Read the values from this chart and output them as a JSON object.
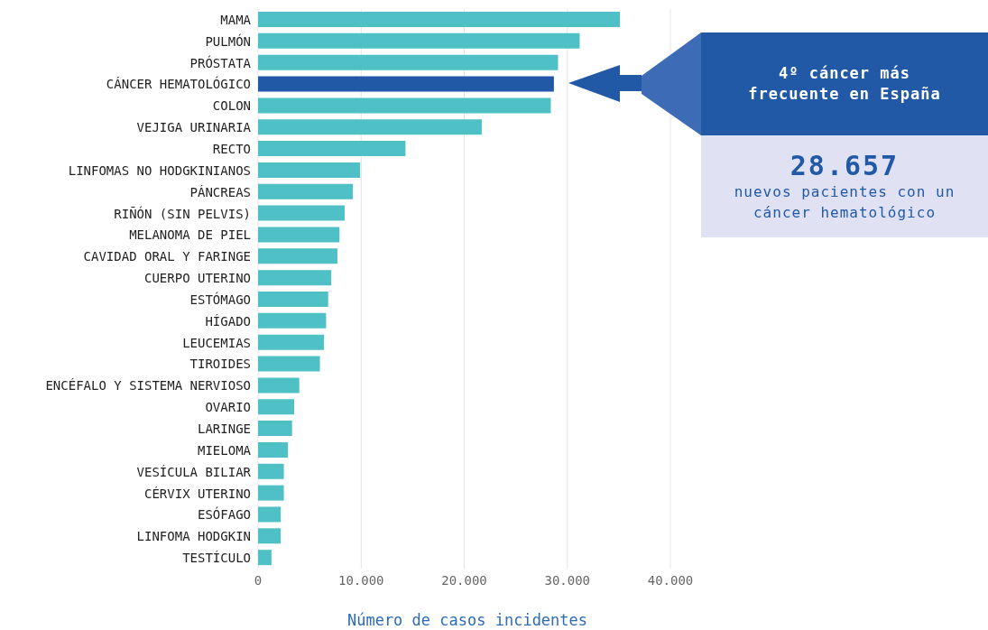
{
  "chart_data": {
    "type": "bar",
    "orientation": "horizontal",
    "xlabel": "Número de casos incidentes",
    "categories": [
      "MAMA",
      "PULMÓN",
      "PRÓSTATA",
      "CÁNCER HEMATOLÓGICO",
      "COLON",
      "VEJIGA URINARIA",
      "RECTO",
      "LINFOMAS NO HODGKINIANOS",
      "PÁNCREAS",
      "RIÑÓN (SIN PELVIS)",
      "MELANOMA DE PIEL",
      "CAVIDAD ORAL Y FARINGE",
      "CUERPO UTERINO",
      "ESTÓMAGO",
      "HÍGADO",
      "LEUCEMIAS",
      "TIROIDES",
      "ENCÉFALO Y SISTEMA NERVIOSO",
      "OVARIO",
      "LARINGE",
      "MIELOMA",
      "VESÍCULA BILIAR",
      "CÉRVIX UTERINO",
      "ESÓFAGO",
      "LINFOMA HODGKIN",
      "TESTÍCULO"
    ],
    "values": [
      35100,
      31200,
      29100,
      28700,
      28400,
      21700,
      14300,
      9900,
      9200,
      8400,
      7900,
      7700,
      7100,
      6800,
      6600,
      6400,
      6000,
      4000,
      3500,
      3300,
      2900,
      2500,
      2500,
      2200,
      2200,
      1300
    ],
    "colors": [
      "#4fc1c6",
      "#4fc1c6",
      "#4fc1c6",
      "#2159a6",
      "#4fc1c6",
      "#4fc1c6",
      "#4fc1c6",
      "#4fc1c6",
      "#4fc1c6",
      "#4fc1c6",
      "#4fc1c6",
      "#4fc1c6",
      "#4fc1c6",
      "#4fc1c6",
      "#4fc1c6",
      "#4fc1c6",
      "#4fc1c6",
      "#4fc1c6",
      "#4fc1c6",
      "#4fc1c6",
      "#4fc1c6",
      "#4fc1c6",
      "#4fc1c6",
      "#4fc1c6",
      "#4fc1c6",
      "#4fc1c6"
    ],
    "xlim": [
      0,
      40000
    ],
    "xticks": [
      {
        "value": 0,
        "label": "0"
      },
      {
        "value": 10000,
        "label": "10.000"
      },
      {
        "value": 20000,
        "label": "20.000"
      },
      {
        "value": 30000,
        "label": "30.000"
      },
      {
        "value": 40000,
        "label": "40.000"
      }
    ],
    "grid": "x",
    "annotations": [
      "4º cáncer más frecuente en España",
      "28.657",
      "nuevos pacientes con un cáncer hematológico"
    ]
  }
}
